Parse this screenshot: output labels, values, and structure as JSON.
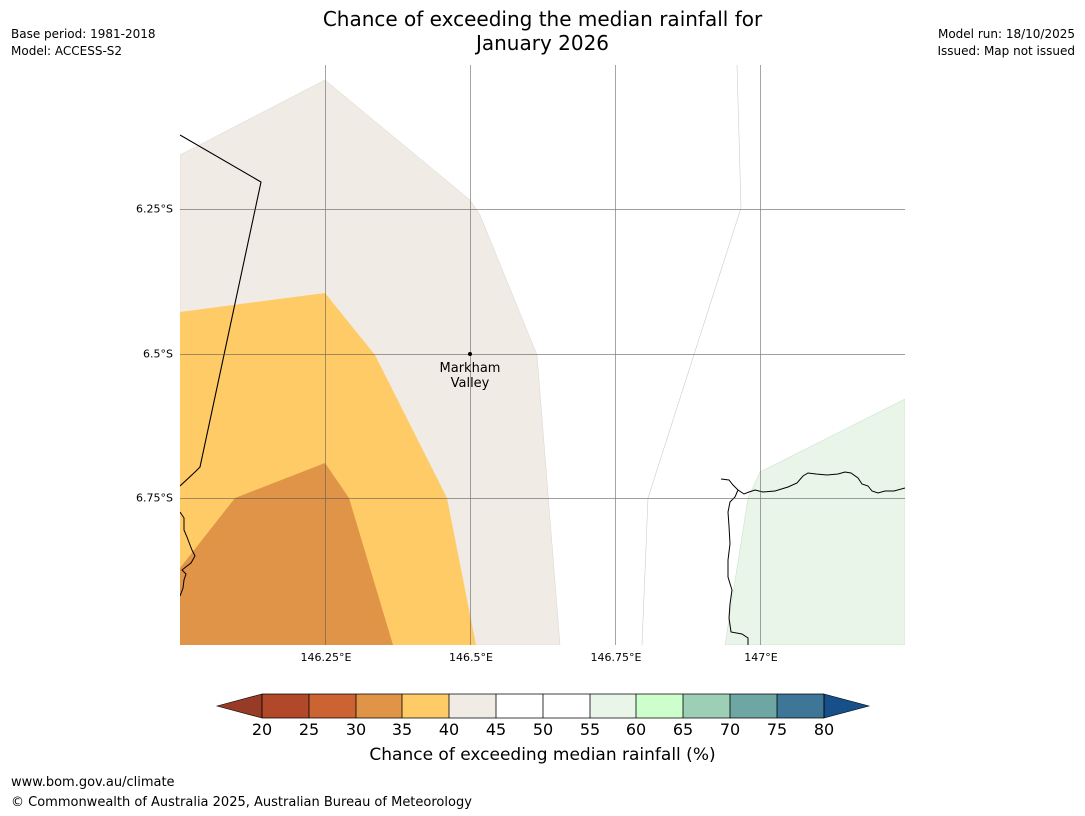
{
  "header": {
    "title_line1": "Chance of exceeding the median rainfall for",
    "title_line2": "January 2026",
    "base_period": "Base period: 1981-2018",
    "model": "Model: ACCESS-S2",
    "model_run": "Model run: 18/10/2025",
    "issued": "Issued: Map not issued"
  },
  "map": {
    "lat_labels": [
      "6.25°S",
      "6.5°S",
      "6.75°S"
    ],
    "lon_labels": [
      "146.25°E",
      "146.5°E",
      "146.75°E",
      "147°E"
    ],
    "place": {
      "name_line1": "Markham",
      "name_line2": "Valley"
    },
    "extent": {
      "lon_min": 146.0,
      "lon_max": 147.25,
      "lat_min": -7.0,
      "lat_max": -6.0
    },
    "zones": [
      {
        "name": "40-45%",
        "color": "#f0ebe5"
      },
      {
        "name": "35-40%",
        "color": "#fecb66"
      },
      {
        "name": "30-35%",
        "color": "#e09448"
      },
      {
        "name": "55-60%",
        "color": "#e8f5e8"
      }
    ]
  },
  "colorbar": {
    "ticks": [
      "20",
      "25",
      "30",
      "35",
      "40",
      "45",
      "50",
      "55",
      "60",
      "65",
      "70",
      "75",
      "80"
    ],
    "colors": [
      "#b2482a",
      "#cb6332",
      "#e09448",
      "#fecb66",
      "#f0ebe5",
      "#ffffff",
      "#ffffff",
      "#e8f5e8",
      "#ccffcc",
      "#9ccfb6",
      "#6ea6a4",
      "#3e7698"
    ],
    "under_color": "#983b26",
    "over_color": "#164f8a",
    "label": "Chance of exceeding median rainfall (%)"
  },
  "footer": {
    "url": "www.bom.gov.au/climate",
    "copyright": "© Commonwealth of Australia 2025, Australian Bureau of Meteorology"
  }
}
